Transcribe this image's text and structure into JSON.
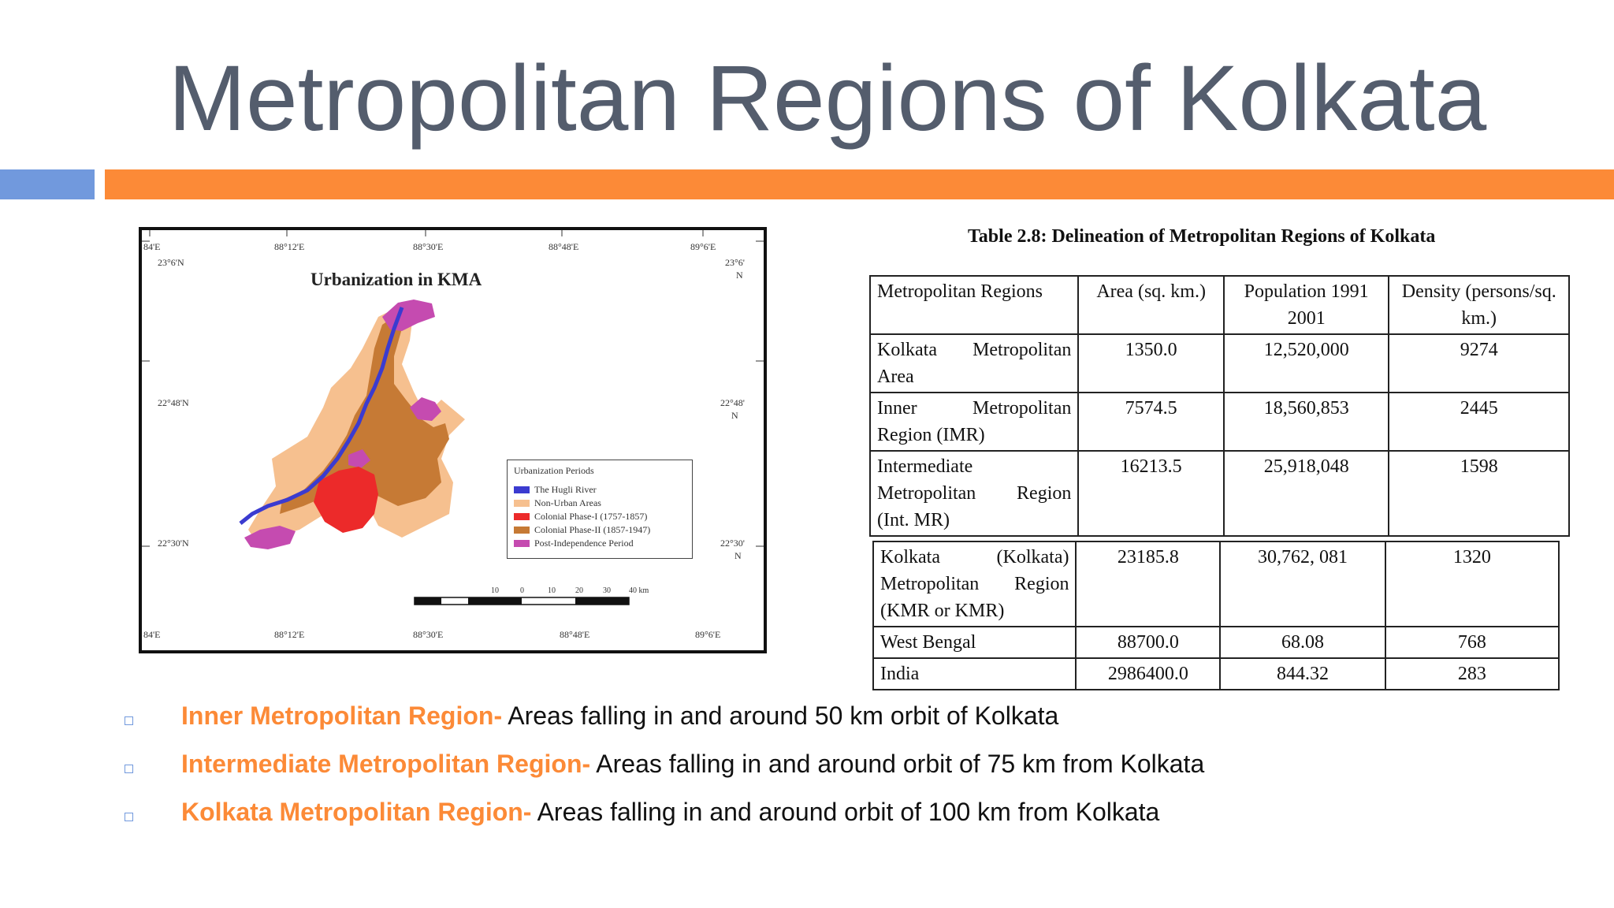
{
  "slide": {
    "title": "Metropolitan Regions of Kolkata"
  },
  "map": {
    "title": "Urbanization in KMA",
    "top_ticks": [
      "84'E",
      "88°12'E",
      "88°30'E",
      "88°48'E",
      "89°6'E"
    ],
    "bottom_ticks": [
      "84'E",
      "88°12'E",
      "88°30'E",
      "88°48'E",
      "89°6'E"
    ],
    "left_ticks": [
      "23°6'N",
      "22°48'N",
      "22°30'N"
    ],
    "right_ticks": [
      "23°6'",
      "N",
      "22°48'",
      "N",
      "22°30'",
      "N"
    ],
    "legend": {
      "title": "Urbanization Periods",
      "items": [
        {
          "label": "The Hugli River",
          "color": "#3b3bd0"
        },
        {
          "label": "Non-Urban Areas",
          "color": "#f6c08f"
        },
        {
          "label": "Colonial Phase-I (1757-1857)",
          "color": "#ec2a2a"
        },
        {
          "label": "Colonial Phase-II (1857-1947)",
          "color": "#c67a35"
        },
        {
          "label": "Post-Independence Period",
          "color": "#c54bb0"
        }
      ]
    },
    "scale": [
      "10",
      "0",
      "10",
      "20",
      "30",
      "40 km"
    ]
  },
  "table": {
    "caption": "Table 2.8: Delineation of Metropolitan Regions of Kolkata",
    "headers": [
      "Metropolitan Regions",
      "Area (sq. km.)",
      "Population 1991 2001",
      "Density (persons/sq. km.)"
    ],
    "rows": [
      [
        "Kolkata Metropolitan Area",
        "1350.0",
        "12,520,000",
        "9274"
      ],
      [
        "Inner Metropolitan Region (IMR)",
        "7574.5",
        "18,560,853",
        "2445"
      ],
      [
        "Intermediate Metropolitan Region (Int. MR)",
        "16213.5",
        "25,918,048",
        "1598"
      ]
    ],
    "rows2": [
      [
        "Kolkata (Kolkata) Metropolitan Region (KMR or KMR)",
        "23185.8",
        "30,762, 081",
        "1320"
      ],
      [
        "West Bengal",
        "88700.0",
        "68.08",
        "768"
      ],
      [
        "India",
        "2986400.0",
        "844.32",
        "283"
      ]
    ]
  },
  "bullets": [
    {
      "highlight": "Inner Metropolitan Region-",
      "text": " Areas falling in and around 50 km orbit of Kolkata"
    },
    {
      "highlight": "Intermediate Metropolitan Region-",
      "text": " Areas falling in and around orbit of 75 km from Kolkata"
    },
    {
      "highlight": "Kolkata Metropolitan Region-",
      "text": " Areas falling in and around orbit of 100 km from Kolkata"
    }
  ],
  "colors": {
    "title": "#545d6d",
    "accent_orange": "#fc8a37",
    "accent_blue": "#7199dd"
  }
}
